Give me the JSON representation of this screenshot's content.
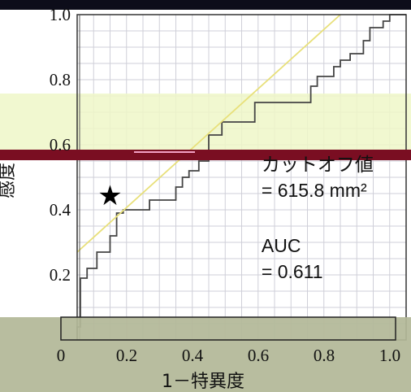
{
  "chart_data": {
    "type": "line",
    "xlabel": "1－特異度",
    "ylabel": "感度",
    "xlim": [
      0,
      1
    ],
    "ylim": [
      0,
      1
    ],
    "x_ticks": [
      "0",
      "0.2",
      "0.4",
      "0.6",
      "0.8",
      "1.0"
    ],
    "y_ticks": [
      "0.2",
      "0.4",
      "0.6",
      "0.8",
      "1.0"
    ],
    "grid": true,
    "series": [
      {
        "kind": "roc-step",
        "color": "#444444",
        "points": [
          [
            0.0,
            0.0
          ],
          [
            0.0,
            0.02
          ],
          [
            0.0,
            0.04
          ],
          [
            0.01,
            0.04
          ],
          [
            0.01,
            0.19
          ],
          [
            0.03,
            0.19
          ],
          [
            0.03,
            0.22
          ],
          [
            0.06,
            0.22
          ],
          [
            0.06,
            0.27
          ],
          [
            0.1,
            0.27
          ],
          [
            0.1,
            0.32
          ],
          [
            0.12,
            0.32
          ],
          [
            0.12,
            0.39
          ],
          [
            0.14,
            0.39
          ],
          [
            0.14,
            0.4
          ],
          [
            0.22,
            0.4
          ],
          [
            0.22,
            0.43
          ],
          [
            0.3,
            0.43
          ],
          [
            0.3,
            0.47
          ],
          [
            0.32,
            0.47
          ],
          [
            0.32,
            0.5
          ],
          [
            0.34,
            0.5
          ],
          [
            0.34,
            0.52
          ],
          [
            0.37,
            0.52
          ],
          [
            0.37,
            0.55
          ],
          [
            0.4,
            0.55
          ],
          [
            0.4,
            0.63
          ],
          [
            0.44,
            0.63
          ],
          [
            0.44,
            0.67
          ],
          [
            0.54,
            0.67
          ],
          [
            0.54,
            0.73
          ],
          [
            0.71,
            0.73
          ],
          [
            0.71,
            0.78
          ],
          [
            0.73,
            0.78
          ],
          [
            0.73,
            0.81
          ],
          [
            0.78,
            0.81
          ],
          [
            0.78,
            0.84
          ],
          [
            0.8,
            0.84
          ],
          [
            0.8,
            0.86
          ],
          [
            0.83,
            0.86
          ],
          [
            0.83,
            0.88
          ],
          [
            0.87,
            0.88
          ],
          [
            0.87,
            0.92
          ],
          [
            0.89,
            0.92
          ],
          [
            0.89,
            0.96
          ],
          [
            0.93,
            0.96
          ],
          [
            0.93,
            0.98
          ],
          [
            0.95,
            0.98
          ],
          [
            0.95,
            1.0
          ],
          [
            1.0,
            1.0
          ]
        ]
      },
      {
        "kind": "reference-line",
        "color": "#e8e07a",
        "points": [
          [
            0.0,
            0.27
          ],
          [
            0.8,
            1.0
          ]
        ]
      }
    ],
    "marker": {
      "symbol": "★",
      "x": 0.1,
      "y": 0.44
    },
    "annotations": [
      {
        "id": "cutoff",
        "lines": [
          "カットオフ値",
          "= 615.8 mm²"
        ],
        "x": 0.58,
        "y": 0.5
      },
      {
        "id": "auc",
        "lines": [
          "AUC",
          "= 0.611"
        ],
        "x": 0.58,
        "y": 0.25
      }
    ]
  }
}
